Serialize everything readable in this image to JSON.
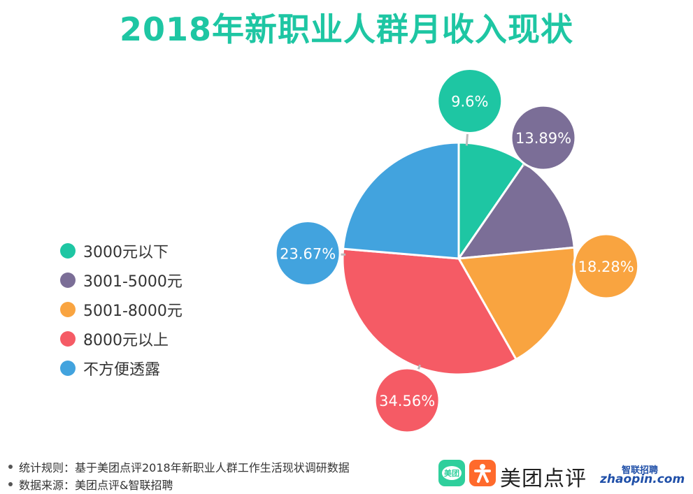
{
  "title": "2018年新职业人群月收入现状",
  "chart_data": {
    "type": "pie",
    "categories": [
      "3000元以下",
      "3001-5000元",
      "5001-8000元",
      "8000元以上",
      "不方便透露"
    ],
    "values": [
      9.6,
      13.89,
      18.28,
      34.56,
      23.67
    ],
    "value_labels": [
      "9.6%",
      "13.89%",
      "18.28%",
      "34.56%",
      "23.67%"
    ],
    "colors": [
      "#1ec6a3",
      "#7b6e97",
      "#f9a440",
      "#f55b65",
      "#42a3de"
    ],
    "start_angle_deg": 0,
    "direction": "clockwise",
    "legend_position": "left"
  },
  "legend": {
    "items": [
      {
        "label": "3000元以下",
        "color": "#1ec6a3"
      },
      {
        "label": "3001-5000元",
        "color": "#7b6e97"
      },
      {
        "label": "5001-8000元",
        "color": "#f9a440"
      },
      {
        "label": "8000元以上",
        "color": "#f55b65"
      },
      {
        "label": "不方便透露",
        "color": "#42a3de"
      }
    ]
  },
  "footnotes": {
    "rule": "统计规则：基于美团点评2018年新职业人群工作生活现状调研数据",
    "source": "数据来源：美团点评&智联招聘"
  },
  "logos": {
    "meituan_icon_text": "美团",
    "meituan_dianping": "美团点评",
    "zhaopin_cn": "智联招聘",
    "zhaopin_en": "zhaopin.com",
    "meituan_color": "#2fcf9c",
    "dianping_color": "#ff6a2c"
  }
}
